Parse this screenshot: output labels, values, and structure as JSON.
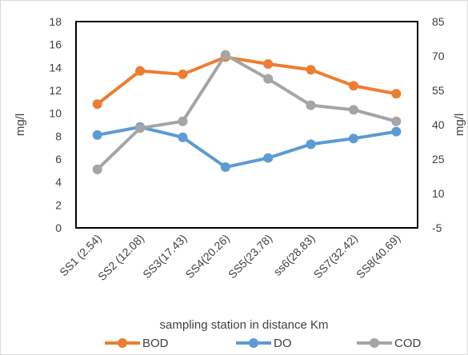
{
  "chart_data": {
    "type": "line",
    "categories": [
      "SS1 (2.54)",
      "SS2 (12.08)",
      "SS3(17.43)",
      "SS4(20.26)",
      "SS5(23.78)",
      "ss6(28.83)",
      "SS7(32.42)",
      "SS8(40.69)"
    ],
    "series": [
      {
        "name": "BOD",
        "axis": "left",
        "color": "#ED7D31",
        "values": [
          10.8,
          13.7,
          13.4,
          14.9,
          14.3,
          13.8,
          12.4,
          11.7
        ]
      },
      {
        "name": "DO",
        "axis": "left",
        "color": "#5B9BD5",
        "values": [
          8.1,
          8.8,
          7.9,
          5.3,
          6.1,
          7.3,
          7.8,
          8.4
        ]
      },
      {
        "name": "COD",
        "axis": "right",
        "color": "#A5A5A5",
        "values": [
          20.5,
          38.5,
          41.5,
          70.5,
          60,
          48.5,
          46.5,
          41.5
        ]
      }
    ],
    "xlabel": "sampling station in distance Km",
    "ylabel": "mg/l",
    "y2label": "mg/l",
    "ylim": [
      0,
      18
    ],
    "yticks": [
      0,
      2,
      4,
      6,
      8,
      10,
      12,
      14,
      16,
      18
    ],
    "y2lim": [
      -5,
      85
    ],
    "y2ticks": [
      -5,
      10,
      25,
      40,
      55,
      70,
      85
    ],
    "grid": false,
    "legend": "bottom"
  }
}
